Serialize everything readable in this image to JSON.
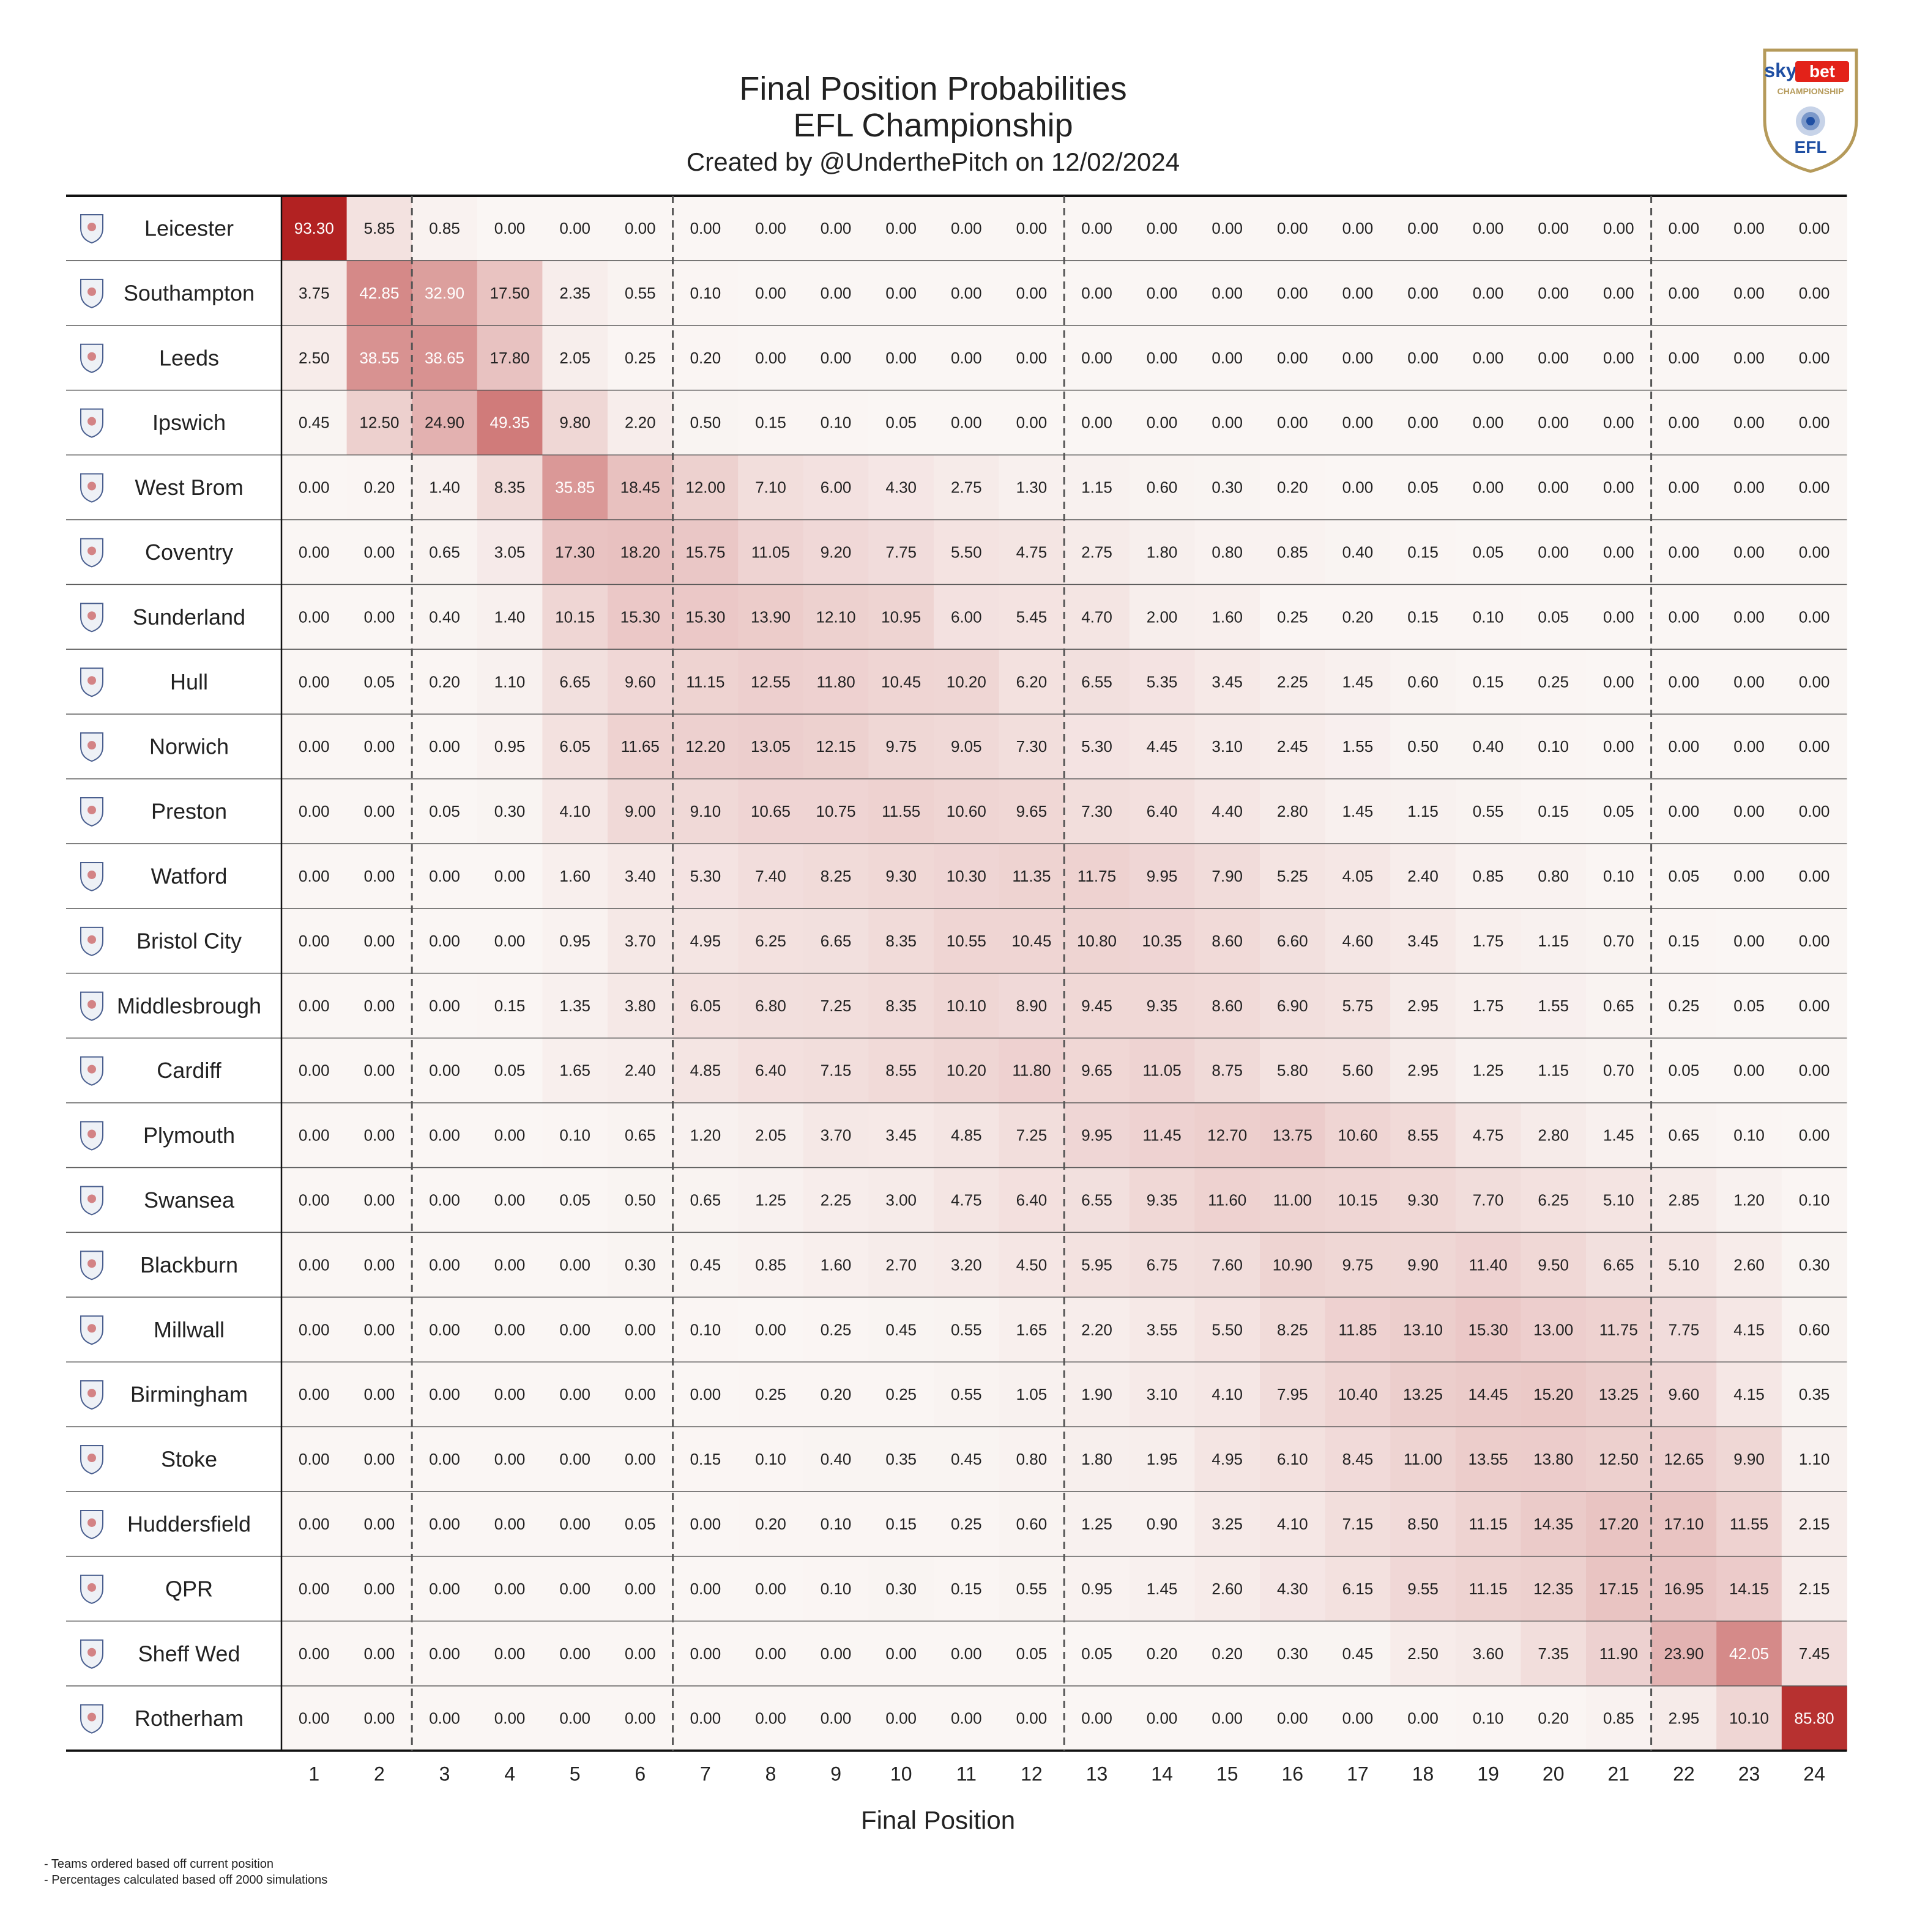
{
  "header": {
    "title": "Final Position Probabilities",
    "subtitle": "EFL Championship",
    "credit": "Created by @UnderthePitch on 12/02/2024"
  },
  "logo": {
    "brand_top": "sky",
    "brand_bet": "bet",
    "brand_sub": "CHAMPIONSHIP",
    "brand_efl": "EFL",
    "accent": "#e32219",
    "gold": "#b59a5a"
  },
  "footnotes": [
    "- Teams ordered based off current position",
    "- Percentages calculated based off 2000 simulations"
  ],
  "colors": {
    "low": "#faf6f4",
    "high": "#b22222",
    "grid": "#555555",
    "text_dark": "#222222",
    "text_light": "#ffffff"
  },
  "chart_data": {
    "type": "heatmap",
    "xlabel": "Final Position",
    "x": [
      1,
      2,
      3,
      4,
      5,
      6,
      7,
      8,
      9,
      10,
      11,
      12,
      13,
      14,
      15,
      16,
      17,
      18,
      19,
      20,
      21,
      22,
      23,
      24
    ],
    "dividers_after_position": [
      2,
      6,
      12,
      21
    ],
    "teams": [
      "Leicester",
      "Southampton",
      "Leeds",
      "Ipswich",
      "West Brom",
      "Coventry",
      "Sunderland",
      "Hull",
      "Norwich",
      "Preston",
      "Watford",
      "Bristol City",
      "Middlesbrough",
      "Cardiff",
      "Plymouth",
      "Swansea",
      "Blackburn",
      "Millwall",
      "Birmingham",
      "Stoke",
      "Huddersfield",
      "QPR",
      "Sheff Wed",
      "Rotherham"
    ],
    "values": [
      [
        "93.30",
        "5.85",
        "0.85",
        "0.00",
        "0.00",
        "0.00",
        "0.00",
        "0.00",
        "0.00",
        "0.00",
        "0.00",
        "0.00",
        "0.00",
        "0.00",
        "0.00",
        "0.00",
        "0.00",
        "0.00",
        "0.00",
        "0.00",
        "0.00",
        "0.00",
        "0.00",
        "0.00"
      ],
      [
        "3.75",
        "42.85",
        "32.90",
        "17.50",
        "2.35",
        "0.55",
        "0.10",
        "0.00",
        "0.00",
        "0.00",
        "0.00",
        "0.00",
        "0.00",
        "0.00",
        "0.00",
        "0.00",
        "0.00",
        "0.00",
        "0.00",
        "0.00",
        "0.00",
        "0.00",
        "0.00",
        "0.00"
      ],
      [
        "2.50",
        "38.55",
        "38.65",
        "17.80",
        "2.05",
        "0.25",
        "0.20",
        "0.00",
        "0.00",
        "0.00",
        "0.00",
        "0.00",
        "0.00",
        "0.00",
        "0.00",
        "0.00",
        "0.00",
        "0.00",
        "0.00",
        "0.00",
        "0.00",
        "0.00",
        "0.00",
        "0.00"
      ],
      [
        "0.45",
        "12.50",
        "24.90",
        "49.35",
        "9.80",
        "2.20",
        "0.50",
        "0.15",
        "0.10",
        "0.05",
        "0.00",
        "0.00",
        "0.00",
        "0.00",
        "0.00",
        "0.00",
        "0.00",
        "0.00",
        "0.00",
        "0.00",
        "0.00",
        "0.00",
        "0.00",
        "0.00"
      ],
      [
        "0.00",
        "0.20",
        "1.40",
        "8.35",
        "35.85",
        "18.45",
        "12.00",
        "7.10",
        "6.00",
        "4.30",
        "2.75",
        "1.30",
        "1.15",
        "0.60",
        "0.30",
        "0.20",
        "0.00",
        "0.05",
        "0.00",
        "0.00",
        "0.00",
        "0.00",
        "0.00",
        "0.00"
      ],
      [
        "0.00",
        "0.00",
        "0.65",
        "3.05",
        "17.30",
        "18.20",
        "15.75",
        "11.05",
        "9.20",
        "7.75",
        "5.50",
        "4.75",
        "2.75",
        "1.80",
        "0.80",
        "0.85",
        "0.40",
        "0.15",
        "0.05",
        "0.00",
        "0.00",
        "0.00",
        "0.00",
        "0.00"
      ],
      [
        "0.00",
        "0.00",
        "0.40",
        "1.40",
        "10.15",
        "15.30",
        "15.30",
        "13.90",
        "12.10",
        "10.95",
        "6.00",
        "5.45",
        "4.70",
        "2.00",
        "1.60",
        "0.25",
        "0.20",
        "0.15",
        "0.10",
        "0.05",
        "0.00",
        "0.00",
        "0.00",
        "0.00"
      ],
      [
        "0.00",
        "0.05",
        "0.20",
        "1.10",
        "6.65",
        "9.60",
        "11.15",
        "12.55",
        "11.80",
        "10.45",
        "10.20",
        "6.20",
        "6.55",
        "5.35",
        "3.45",
        "2.25",
        "1.45",
        "0.60",
        "0.15",
        "0.25",
        "0.00",
        "0.00",
        "0.00",
        "0.00"
      ],
      [
        "0.00",
        "0.00",
        "0.00",
        "0.95",
        "6.05",
        "11.65",
        "12.20",
        "13.05",
        "12.15",
        "9.75",
        "9.05",
        "7.30",
        "5.30",
        "4.45",
        "3.10",
        "2.45",
        "1.55",
        "0.50",
        "0.40",
        "0.10",
        "0.00",
        "0.00",
        "0.00",
        "0.00"
      ],
      [
        "0.00",
        "0.00",
        "0.05",
        "0.30",
        "4.10",
        "9.00",
        "9.10",
        "10.65",
        "10.75",
        "11.55",
        "10.60",
        "9.65",
        "7.30",
        "6.40",
        "4.40",
        "2.80",
        "1.45",
        "1.15",
        "0.55",
        "0.15",
        "0.05",
        "0.00",
        "0.00",
        "0.00"
      ],
      [
        "0.00",
        "0.00",
        "0.00",
        "0.00",
        "1.60",
        "3.40",
        "5.30",
        "7.40",
        "8.25",
        "9.30",
        "10.30",
        "11.35",
        "11.75",
        "9.95",
        "7.90",
        "5.25",
        "4.05",
        "2.40",
        "0.85",
        "0.80",
        "0.10",
        "0.05",
        "0.00",
        "0.00"
      ],
      [
        "0.00",
        "0.00",
        "0.00",
        "0.00",
        "0.95",
        "3.70",
        "4.95",
        "6.25",
        "6.65",
        "8.35",
        "10.55",
        "10.45",
        "10.80",
        "10.35",
        "8.60",
        "6.60",
        "4.60",
        "3.45",
        "1.75",
        "1.15",
        "0.70",
        "0.15",
        "0.00",
        "0.00"
      ],
      [
        "0.00",
        "0.00",
        "0.00",
        "0.15",
        "1.35",
        "3.80",
        "6.05",
        "6.80",
        "7.25",
        "8.35",
        "10.10",
        "8.90",
        "9.45",
        "9.35",
        "8.60",
        "6.90",
        "5.75",
        "2.95",
        "1.75",
        "1.55",
        "0.65",
        "0.25",
        "0.05",
        "0.00"
      ],
      [
        "0.00",
        "0.00",
        "0.00",
        "0.05",
        "1.65",
        "2.40",
        "4.85",
        "6.40",
        "7.15",
        "8.55",
        "10.20",
        "11.80",
        "9.65",
        "11.05",
        "8.75",
        "5.80",
        "5.60",
        "2.95",
        "1.25",
        "1.15",
        "0.70",
        "0.05",
        "0.00",
        "0.00"
      ],
      [
        "0.00",
        "0.00",
        "0.00",
        "0.00",
        "0.10",
        "0.65",
        "1.20",
        "2.05",
        "3.70",
        "3.45",
        "4.85",
        "7.25",
        "9.95",
        "11.45",
        "12.70",
        "13.75",
        "10.60",
        "8.55",
        "4.75",
        "2.80",
        "1.45",
        "0.65",
        "0.10",
        "0.00"
      ],
      [
        "0.00",
        "0.00",
        "0.00",
        "0.00",
        "0.05",
        "0.50",
        "0.65",
        "1.25",
        "2.25",
        "3.00",
        "4.75",
        "6.40",
        "6.55",
        "9.35",
        "11.60",
        "11.00",
        "10.15",
        "9.30",
        "7.70",
        "6.25",
        "5.10",
        "2.85",
        "1.20",
        "0.10"
      ],
      [
        "0.00",
        "0.00",
        "0.00",
        "0.00",
        "0.00",
        "0.30",
        "0.45",
        "0.85",
        "1.60",
        "2.70",
        "3.20",
        "4.50",
        "5.95",
        "6.75",
        "7.60",
        "10.90",
        "9.75",
        "9.90",
        "11.40",
        "9.50",
        "6.65",
        "5.10",
        "2.60",
        "0.30"
      ],
      [
        "0.00",
        "0.00",
        "0.00",
        "0.00",
        "0.00",
        "0.00",
        "0.10",
        "0.00",
        "0.25",
        "0.45",
        "0.55",
        "1.65",
        "2.20",
        "3.55",
        "5.50",
        "8.25",
        "11.85",
        "13.10",
        "15.30",
        "13.00",
        "11.75",
        "7.75",
        "4.15",
        "0.60"
      ],
      [
        "0.00",
        "0.00",
        "0.00",
        "0.00",
        "0.00",
        "0.00",
        "0.00",
        "0.25",
        "0.20",
        "0.25",
        "0.55",
        "1.05",
        "1.90",
        "3.10",
        "4.10",
        "7.95",
        "10.40",
        "13.25",
        "14.45",
        "15.20",
        "13.25",
        "9.60",
        "4.15",
        "0.35"
      ],
      [
        "0.00",
        "0.00",
        "0.00",
        "0.00",
        "0.00",
        "0.00",
        "0.15",
        "0.10",
        "0.40",
        "0.35",
        "0.45",
        "0.80",
        "1.80",
        "1.95",
        "4.95",
        "6.10",
        "8.45",
        "11.00",
        "13.55",
        "13.80",
        "12.50",
        "12.65",
        "9.90",
        "1.10"
      ],
      [
        "0.00",
        "0.00",
        "0.00",
        "0.00",
        "0.00",
        "0.05",
        "0.00",
        "0.20",
        "0.10",
        "0.15",
        "0.25",
        "0.60",
        "1.25",
        "0.90",
        "3.25",
        "4.10",
        "7.15",
        "8.50",
        "11.15",
        "14.35",
        "17.20",
        "17.10",
        "11.55",
        "2.15"
      ],
      [
        "0.00",
        "0.00",
        "0.00",
        "0.00",
        "0.00",
        "0.00",
        "0.00",
        "0.00",
        "0.10",
        "0.30",
        "0.15",
        "0.55",
        "0.95",
        "1.45",
        "2.60",
        "4.30",
        "6.15",
        "9.55",
        "11.15",
        "12.35",
        "17.15",
        "16.95",
        "14.15",
        "2.15"
      ],
      [
        "0.00",
        "0.00",
        "0.00",
        "0.00",
        "0.00",
        "0.00",
        "0.00",
        "0.00",
        "0.00",
        "0.00",
        "0.00",
        "0.05",
        "0.05",
        "0.20",
        "0.20",
        "0.30",
        "0.45",
        "2.50",
        "3.60",
        "7.35",
        "11.90",
        "23.90",
        "42.05",
        "7.45"
      ],
      [
        "0.00",
        "0.00",
        "0.00",
        "0.00",
        "0.00",
        "0.00",
        "0.00",
        "0.00",
        "0.00",
        "0.00",
        "0.00",
        "0.00",
        "0.00",
        "0.00",
        "0.00",
        "0.00",
        "0.00",
        "0.00",
        "0.10",
        "0.20",
        "0.85",
        "2.95",
        "10.10",
        "85.80"
      ]
    ]
  }
}
